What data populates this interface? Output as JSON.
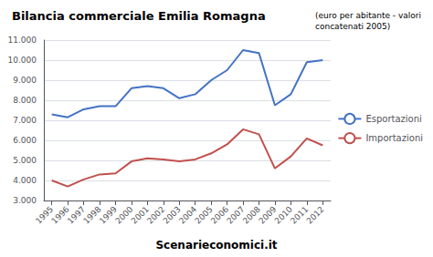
{
  "chart_data": {
    "type": "line",
    "title": "Bilancia commerciale Emilia Romagna",
    "subtitle": [
      "(euro per abitante - valori",
      "concatenati 2005)"
    ],
    "xlabel": "Scenarieconomici.it",
    "x": [
      1995,
      1996,
      1997,
      1998,
      1999,
      2000,
      2001,
      2002,
      2003,
      2004,
      2005,
      2006,
      2007,
      2008,
      2009,
      2010,
      2011,
      2012
    ],
    "series": [
      {
        "name": "Esportazioni",
        "color": "#4472C4",
        "values": [
          7300,
          7150,
          7550,
          7700,
          7700,
          8600,
          8700,
          8600,
          8100,
          8300,
          9000,
          9500,
          10500,
          10350,
          7750,
          8300,
          9900,
          10000
        ]
      },
      {
        "name": "Importazioni",
        "color": "#C0504D",
        "values": [
          4000,
          3700,
          4050,
          4300,
          4350,
          4950,
          5100,
          5050,
          4950,
          5050,
          5350,
          5800,
          6550,
          6300,
          4600,
          5200,
          6100,
          5750
        ]
      }
    ],
    "xlim": [
      1994.5,
      2012.5
    ],
    "xticks": [
      1995,
      1996,
      1997,
      1998,
      1999,
      2000,
      2001,
      2002,
      2003,
      2004,
      2005,
      2006,
      2007,
      2008,
      2009,
      2010,
      2011,
      2012
    ],
    "ylim": [
      3000,
      11000
    ],
    "yticks": [
      {
        "value": 3000,
        "label": "3.000"
      },
      {
        "value": 4000,
        "label": "4.000"
      },
      {
        "value": 5000,
        "label": "5.000"
      },
      {
        "value": 6000,
        "label": "6.000"
      },
      {
        "value": 7000,
        "label": "7.000"
      },
      {
        "value": 8000,
        "label": "8.000"
      },
      {
        "value": 9000,
        "label": "9.000"
      },
      {
        "value": 10000,
        "label": "10.000"
      },
      {
        "value": 11000,
        "label": "11.000"
      }
    ],
    "grid": true,
    "legend": "right"
  }
}
